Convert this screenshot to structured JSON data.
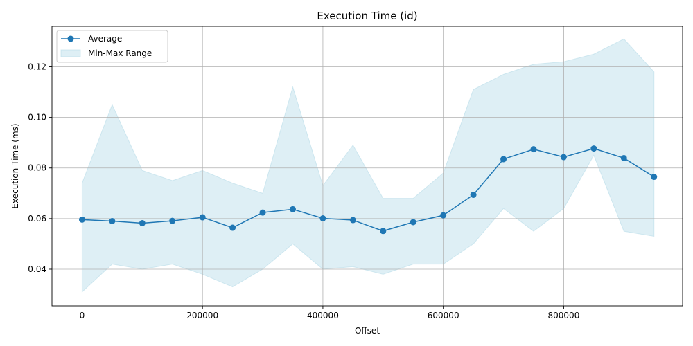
{
  "chart_data": {
    "type": "line",
    "title": "Execution Time (id)",
    "xlabel": "Offset",
    "ylabel": "Execution Time (ms)",
    "xlim": [
      -50000,
      997500
    ],
    "ylim": [
      0.0255,
      0.136
    ],
    "xticks": [
      0,
      200000,
      400000,
      600000,
      800000
    ],
    "yticks": [
      0.04,
      0.06,
      0.08,
      0.1,
      0.12
    ],
    "ytick_labels": [
      "0.04",
      "0.06",
      "0.08",
      "0.10",
      "0.12"
    ],
    "grid": true,
    "legend_position": "top-left",
    "x": [
      0,
      50000,
      100000,
      150000,
      200000,
      250000,
      300000,
      350000,
      400000,
      450000,
      500000,
      550000,
      600000,
      650000,
      700000,
      750000,
      800000,
      850000,
      900000,
      950000
    ],
    "series": [
      {
        "name": "Average",
        "color": "#1f77b4",
        "marker": "circle",
        "values": [
          0.0596,
          0.059,
          0.0582,
          0.0591,
          0.0605,
          0.0564,
          0.0624,
          0.0637,
          0.0601,
          0.0594,
          0.0551,
          0.0586,
          0.0613,
          0.0694,
          0.0835,
          0.0874,
          0.0843,
          0.0877,
          0.0839,
          0.0765
        ]
      },
      {
        "name": "Min-Max Range",
        "color": "#add8e6",
        "type": "area-range",
        "min": [
          0.031,
          0.042,
          0.04,
          0.042,
          0.038,
          0.033,
          0.04,
          0.05,
          0.04,
          0.041,
          0.038,
          0.042,
          0.042,
          0.05,
          0.064,
          0.055,
          0.064,
          0.085,
          0.055,
          0.053
        ],
        "max": [
          0.074,
          0.105,
          0.079,
          0.075,
          0.079,
          0.074,
          0.07,
          0.112,
          0.073,
          0.089,
          0.068,
          0.068,
          0.078,
          0.111,
          0.117,
          0.121,
          0.122,
          0.125,
          0.131,
          0.118
        ]
      }
    ]
  }
}
